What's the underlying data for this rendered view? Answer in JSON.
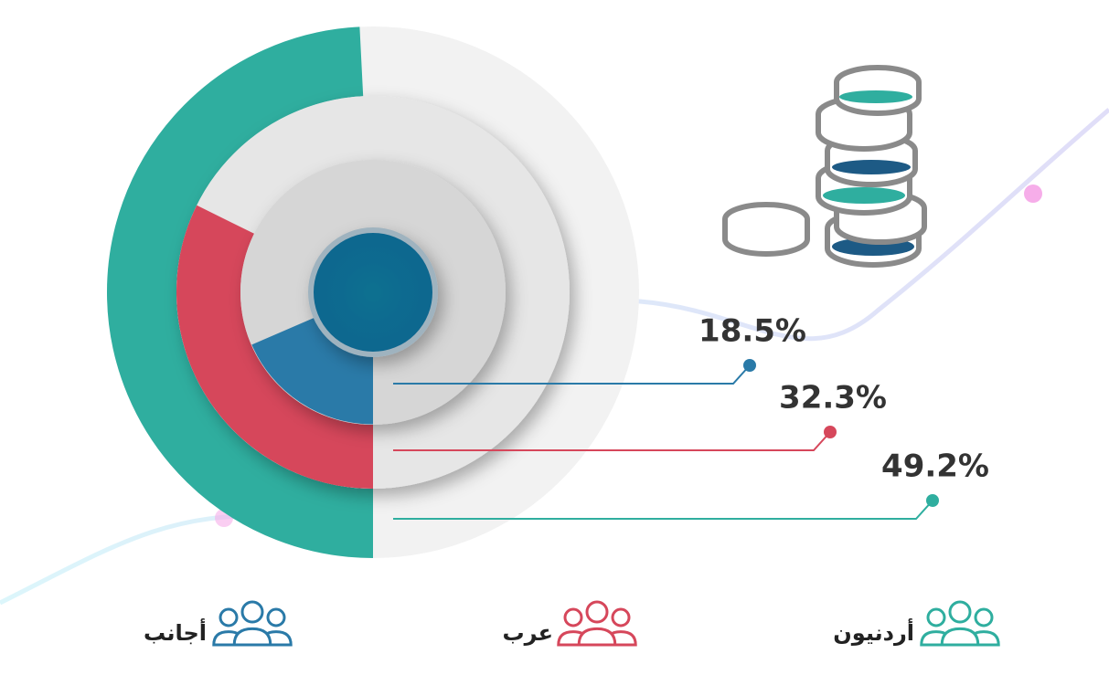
{
  "chart_data": {
    "type": "radial",
    "categories": [
      "أردنيون",
      "عرب",
      "أجانب"
    ],
    "values": [
      49.2,
      32.3,
      18.5
    ],
    "value_labels": [
      "49.2%",
      "32.3%",
      "18.5%"
    ],
    "colors": [
      "#2fae9f",
      "#d6475b",
      "#2a7aa8"
    ],
    "max": 100
  }
}
